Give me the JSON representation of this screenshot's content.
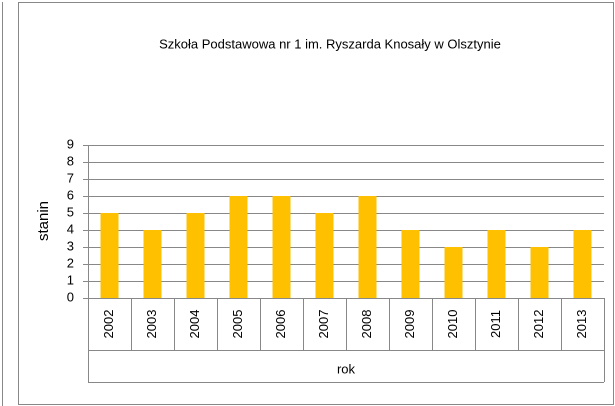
{
  "chart_data": {
    "type": "bar",
    "title": "Szkoła Podstawowa nr 1 im. Ryszarda Knosały w Olsztynie",
    "categories": [
      "2002",
      "2003",
      "2004",
      "2005",
      "2006",
      "2007",
      "2008",
      "2009",
      "2010",
      "2011",
      "2012",
      "2013"
    ],
    "values": [
      5,
      4,
      5,
      6,
      6,
      5,
      6,
      4,
      3,
      4,
      3,
      4
    ],
    "color": "#ffc000",
    "x_label": "rok",
    "y_label": "stanin",
    "ylim": [
      0,
      9
    ],
    "yticks": [
      0,
      1,
      2,
      3,
      4,
      5,
      6,
      7,
      8,
      9
    ],
    "grid": true
  }
}
